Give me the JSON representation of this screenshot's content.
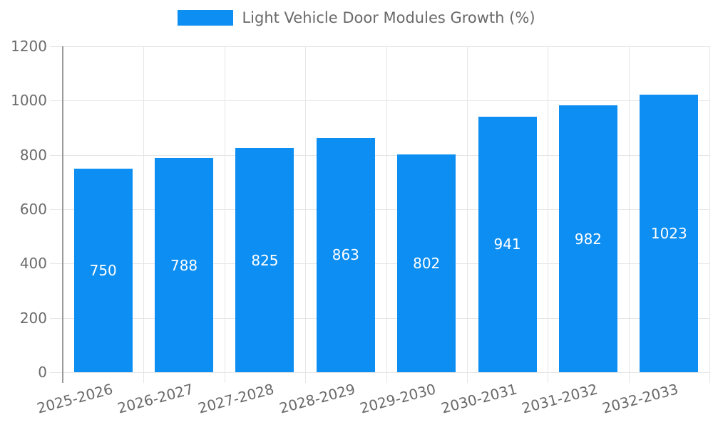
{
  "chart_data": {
    "type": "bar",
    "title": "Light Vehicle Door Modules Growth (%)",
    "categories": [
      "2025-2026",
      "2026-2027",
      "2027-2028",
      "2028-2029",
      "2029-2030",
      "2030-2031",
      "2031-2032",
      "2032-2033"
    ],
    "values": [
      750,
      788,
      825,
      863,
      802,
      941,
      982,
      1023
    ],
    "xlabel": "",
    "ylabel": "",
    "ylim": [
      0,
      1200
    ],
    "yticks": [
      0,
      200,
      400,
      600,
      800,
      1000,
      1200
    ],
    "grid": true,
    "legend_position": "top-center",
    "x_label_rotation_deg": -15,
    "value_labels": "centered-inside-bars"
  },
  "colors": {
    "bar": "#0d8ef2",
    "grid": "#e6e6e6",
    "axis_line": "#9a9a9a",
    "text": "#6a6a6a",
    "value_text": "#ffffff",
    "background": "#ffffff"
  }
}
